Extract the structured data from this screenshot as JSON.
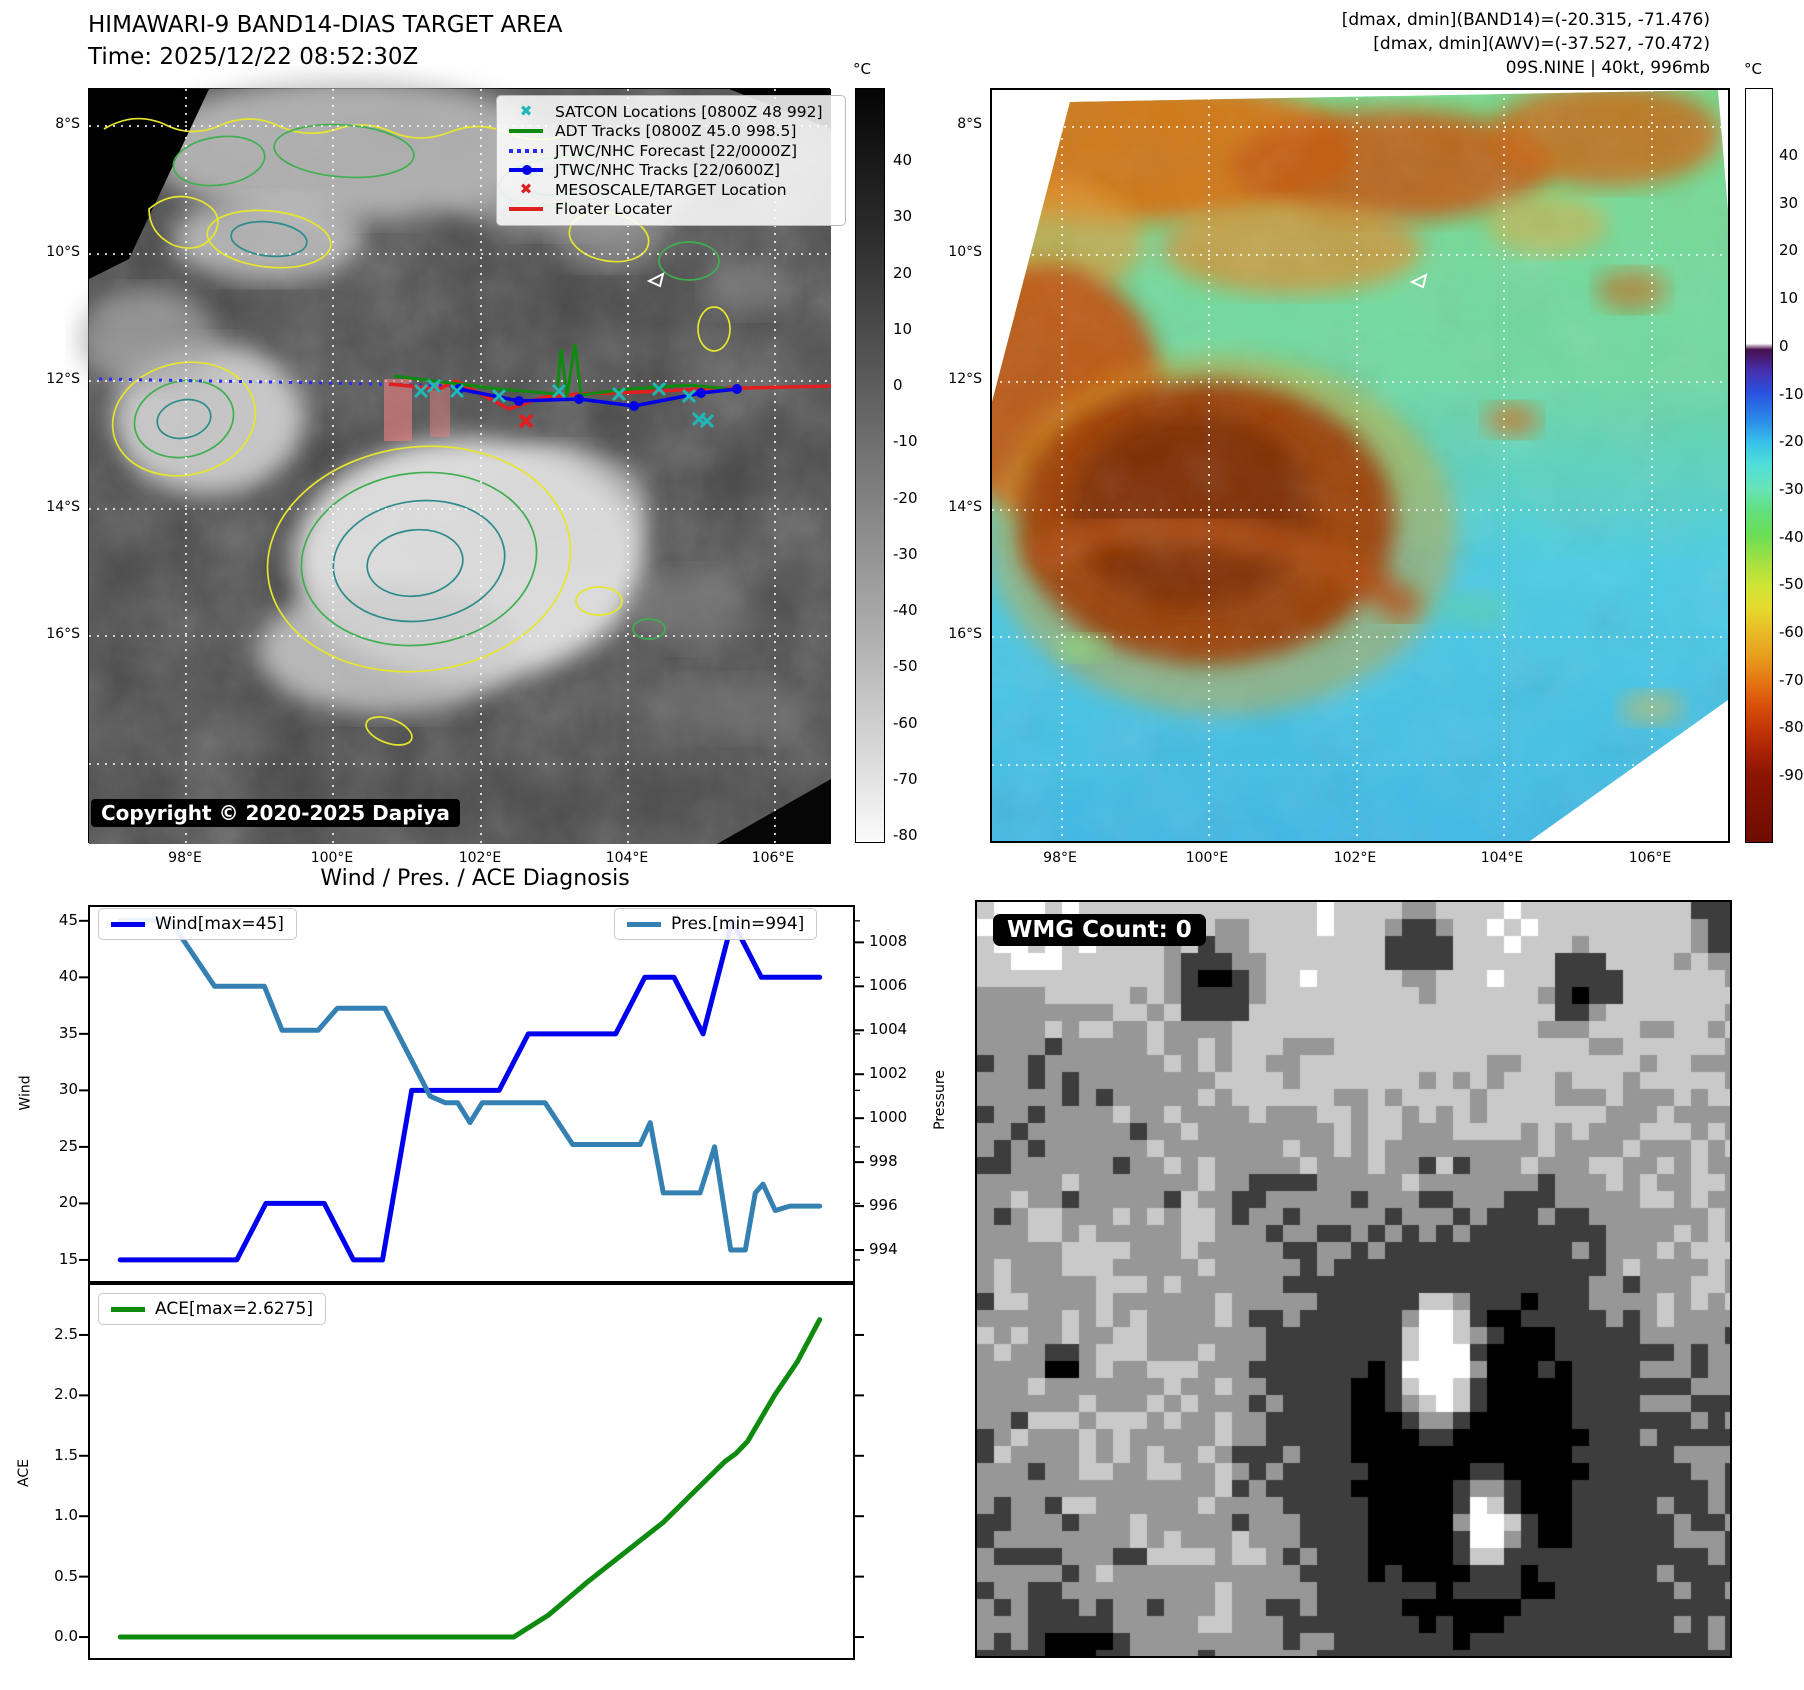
{
  "panels": {
    "band14": {
      "title_line1": "HIMAWARI-9 BAND14-DIAS TARGET AREA",
      "title_line2": "Time: 2025/12/22 08:52:30Z",
      "copyright": "Copyright © 2020-2025 Dapiya",
      "legend": [
        {
          "label": "SATCON Locations [0800Z 48 992]",
          "marker": "x",
          "color": "#1fb8b8"
        },
        {
          "label": "ADT Tracks [0800Z 45.0 998.5]",
          "marker": "line",
          "color": "#0e8a0e"
        },
        {
          "label": "JTWC/NHC Forecast [22/0000Z]",
          "marker": "dotted",
          "color": "#2a2af5"
        },
        {
          "label": "JTWC/NHC Tracks [22/0600Z]",
          "marker": "line-dot",
          "color": "#0000e8"
        },
        {
          "label": "MESOSCALE/TARGET Location",
          "marker": "x",
          "color": "#e02020"
        },
        {
          "label": "Floater Locater",
          "marker": "line",
          "color": "#e02020"
        }
      ],
      "lon_ticks": [
        "98°E",
        "100°E",
        "102°E",
        "104°E",
        "106°E"
      ],
      "lat_ticks": [
        "8°S",
        "10°S",
        "12°S",
        "14°S",
        "16°S"
      ],
      "colorbar": {
        "unit": "°C",
        "ticks": [
          40,
          30,
          20,
          10,
          0,
          -10,
          -20,
          -30,
          -40,
          -50,
          -60,
          -70,
          -80
        ]
      }
    },
    "awv": {
      "header_line1": "[dmax, dmin](BAND14)=(-20.315, -71.476)",
      "header_line2": "[dmax, dmin](AWV)=(-37.527, -70.472)",
      "header_line3": "09S.NINE | 40kt, 996mb",
      "lon_ticks": [
        "98°E",
        "100°E",
        "102°E",
        "104°E",
        "106°E"
      ],
      "lat_ticks": [
        "8°S",
        "10°S",
        "12°S",
        "14°S",
        "16°S"
      ],
      "colorbar": {
        "unit": "°C",
        "ticks": [
          40,
          30,
          20,
          10,
          0,
          -10,
          -20,
          -30,
          -40,
          -50,
          -60,
          -70,
          -80,
          -90
        ]
      }
    },
    "diagnosis": {
      "title": "Wind / Pres. / ACE Diagnosis"
    },
    "wmg": {
      "count_label": "WMG Count: 0"
    }
  },
  "chart_data": [
    {
      "type": "line",
      "title": "Wind / Pres. / ACE Diagnosis",
      "ylabel_left": "Wind",
      "ylabel_right": "Pressure",
      "ylim_left": [
        12.96,
        46.4
      ],
      "ylim_right": [
        992.5,
        1009.7
      ],
      "yticks_left": [
        15,
        20,
        25,
        30,
        35,
        40,
        45
      ],
      "yticks_right": [
        994,
        996,
        998,
        1000,
        1002,
        1004,
        1006,
        1008
      ],
      "grid": false,
      "series": [
        {
          "name": "Wind[max=45]",
          "color": "#0000ee",
          "axis": "left",
          "legend_position": "top-left",
          "points": [
            [
              0.042,
              15
            ],
            [
              0.08,
              15
            ],
            [
              0.118,
              15
            ],
            [
              0.156,
              15
            ],
            [
              0.194,
              15
            ],
            [
              0.232,
              20
            ],
            [
              0.27,
              20
            ],
            [
              0.308,
              20
            ],
            [
              0.346,
              15
            ],
            [
              0.384,
              15
            ],
            [
              0.422,
              30
            ],
            [
              0.46,
              30
            ],
            [
              0.498,
              30
            ],
            [
              0.536,
              30
            ],
            [
              0.574,
              35
            ],
            [
              0.612,
              35
            ],
            [
              0.65,
              35
            ],
            [
              0.688,
              35
            ],
            [
              0.726,
              40
            ],
            [
              0.764,
              40
            ],
            [
              0.802,
              35
            ],
            [
              0.84,
              45
            ],
            [
              0.878,
              40
            ],
            [
              0.916,
              40
            ],
            [
              0.954,
              40
            ]
          ]
        },
        {
          "name": "Pres.[min=994]",
          "color": "#3580b3",
          "axis": "right",
          "legend_position": "top-right",
          "points": [
            [
              0.042,
              1009
            ],
            [
              0.107,
              1009
            ],
            [
              0.165,
              1006
            ],
            [
              0.23,
              1006
            ],
            [
              0.253,
              1004
            ],
            [
              0.3,
              1004
            ],
            [
              0.325,
              1005
            ],
            [
              0.387,
              1005
            ],
            [
              0.446,
              1001
            ],
            [
              0.466,
              1000.7
            ],
            [
              0.482,
              1000.7
            ],
            [
              0.498,
              999.8
            ],
            [
              0.514,
              1000.7
            ],
            [
              0.55,
              1000.7
            ],
            [
              0.596,
              1000.7
            ],
            [
              0.632,
              998.8
            ],
            [
              0.72,
              998.8
            ],
            [
              0.733,
              999.8
            ],
            [
              0.75,
              996.6
            ],
            [
              0.798,
              996.6
            ],
            [
              0.817,
              998.7
            ],
            [
              0.838,
              994
            ],
            [
              0.857,
              994
            ],
            [
              0.87,
              996.6
            ],
            [
              0.88,
              997
            ],
            [
              0.896,
              995.8
            ],
            [
              0.915,
              996
            ],
            [
              0.954,
              996
            ]
          ]
        }
      ]
    },
    {
      "type": "line",
      "ylabel_left": "ACE",
      "ylim_left": [
        -0.19,
        2.93
      ],
      "yticks_left": [
        0.0,
        0.5,
        1.0,
        1.5,
        2.0,
        2.5
      ],
      "grid": false,
      "series": [
        {
          "name": "ACE[max=2.6275]",
          "color": "#0e8a0e",
          "axis": "left",
          "legend_position": "top-left",
          "points": [
            [
              0.042,
              0
            ],
            [
              0.3,
              0
            ],
            [
              0.555,
              0
            ],
            [
              0.6,
              0.18
            ],
            [
              0.65,
              0.45
            ],
            [
              0.7,
              0.7
            ],
            [
              0.75,
              0.95
            ],
            [
              0.79,
              1.2
            ],
            [
              0.83,
              1.45
            ],
            [
              0.845,
              1.52
            ],
            [
              0.86,
              1.62
            ],
            [
              0.895,
              2.0
            ],
            [
              0.925,
              2.28
            ],
            [
              0.954,
              2.6275
            ]
          ]
        }
      ]
    }
  ]
}
